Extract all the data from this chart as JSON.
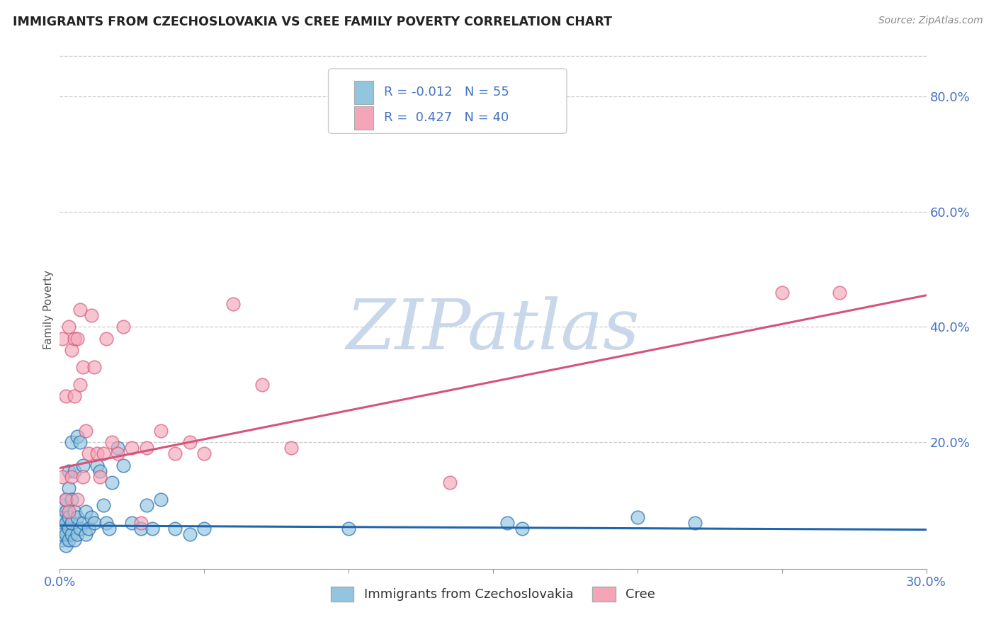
{
  "title": "IMMIGRANTS FROM CZECHOSLOVAKIA VS CREE FAMILY POVERTY CORRELATION CHART",
  "source": "Source: ZipAtlas.com",
  "ylabel": "Family Poverty",
  "legend_label1": "Immigrants from Czechoslovakia",
  "legend_label2": "Cree",
  "R1": "-0.012",
  "N1": "55",
  "R2": "0.427",
  "N2": "40",
  "xlim": [
    0.0,
    0.3
  ],
  "ylim": [
    -0.02,
    0.88
  ],
  "color_blue": "#92c5de",
  "color_pink": "#f4a6b8",
  "line_blue": "#2166ac",
  "line_pink": "#d6537a",
  "watermark": "ZIPatlas",
  "watermark_color": "#c8d8ea",
  "blue_scatter_x": [
    0.001,
    0.001,
    0.001,
    0.001,
    0.001,
    0.002,
    0.002,
    0.002,
    0.002,
    0.002,
    0.003,
    0.003,
    0.003,
    0.003,
    0.003,
    0.004,
    0.004,
    0.004,
    0.004,
    0.005,
    0.005,
    0.005,
    0.006,
    0.006,
    0.006,
    0.007,
    0.007,
    0.008,
    0.008,
    0.009,
    0.009,
    0.01,
    0.011,
    0.012,
    0.013,
    0.014,
    0.015,
    0.016,
    0.017,
    0.018,
    0.02,
    0.022,
    0.025,
    0.028,
    0.03,
    0.032,
    0.035,
    0.04,
    0.045,
    0.05,
    0.1,
    0.155,
    0.16,
    0.2,
    0.22
  ],
  "blue_scatter_y": [
    0.03,
    0.05,
    0.07,
    0.09,
    0.04,
    0.02,
    0.04,
    0.06,
    0.08,
    0.1,
    0.03,
    0.05,
    0.07,
    0.12,
    0.15,
    0.04,
    0.06,
    0.1,
    0.2,
    0.03,
    0.08,
    0.15,
    0.04,
    0.07,
    0.21,
    0.05,
    0.2,
    0.06,
    0.16,
    0.04,
    0.08,
    0.05,
    0.07,
    0.06,
    0.16,
    0.15,
    0.09,
    0.06,
    0.05,
    0.13,
    0.19,
    0.16,
    0.06,
    0.05,
    0.09,
    0.05,
    0.1,
    0.05,
    0.04,
    0.05,
    0.05,
    0.06,
    0.05,
    0.07,
    0.06
  ],
  "pink_scatter_x": [
    0.001,
    0.001,
    0.002,
    0.002,
    0.003,
    0.003,
    0.004,
    0.004,
    0.005,
    0.005,
    0.006,
    0.006,
    0.007,
    0.007,
    0.008,
    0.008,
    0.009,
    0.01,
    0.011,
    0.012,
    0.013,
    0.014,
    0.015,
    0.016,
    0.018,
    0.02,
    0.022,
    0.025,
    0.028,
    0.03,
    0.035,
    0.04,
    0.045,
    0.05,
    0.06,
    0.07,
    0.08,
    0.135,
    0.25,
    0.27
  ],
  "pink_scatter_y": [
    0.14,
    0.38,
    0.1,
    0.28,
    0.08,
    0.4,
    0.36,
    0.14,
    0.28,
    0.38,
    0.1,
    0.38,
    0.3,
    0.43,
    0.33,
    0.14,
    0.22,
    0.18,
    0.42,
    0.33,
    0.18,
    0.14,
    0.18,
    0.38,
    0.2,
    0.18,
    0.4,
    0.19,
    0.06,
    0.19,
    0.22,
    0.18,
    0.2,
    0.18,
    0.44,
    0.3,
    0.19,
    0.13,
    0.46,
    0.46
  ],
  "blue_line_x0": 0.0,
  "blue_line_x1": 0.3,
  "blue_line_y0": 0.055,
  "blue_line_y1": 0.048,
  "pink_line_x0": 0.0,
  "pink_line_x1": 0.3,
  "pink_line_y0": 0.155,
  "pink_line_y1": 0.455
}
